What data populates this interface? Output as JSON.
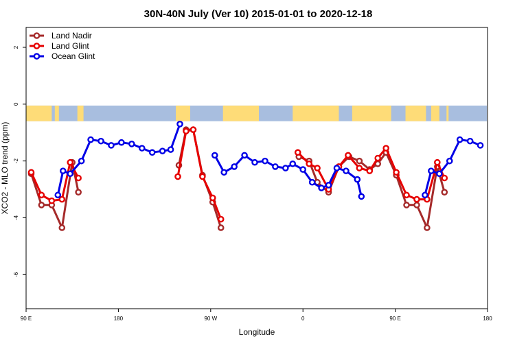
{
  "chart_data": {
    "type": "line",
    "title": "30N-40N July (Ver 10)   2015-01-01 to 2020-12-18",
    "xlabel": "Longitude",
    "ylabel": "XCO2 - MLO trend (ppm)",
    "x_axis": {
      "range_deg": [
        90,
        540
      ],
      "ticks": [
        {
          "value": 90,
          "label": "90 E"
        },
        {
          "value": 180,
          "label": "180"
        },
        {
          "value": 270,
          "label": "90 W"
        },
        {
          "value": 360,
          "label": "0"
        },
        {
          "value": 450,
          "label": "90 E"
        },
        {
          "value": 540,
          "label": "180"
        }
      ]
    },
    "y_axis": {
      "range": [
        -7.2,
        2.7
      ],
      "ticks": [
        -6,
        -4,
        -2,
        0,
        2
      ]
    },
    "grid": false,
    "legend_placement": "top-left",
    "land_mask": {
      "y_top": -0.05,
      "y_bottom": -0.6,
      "ocean_color": "#a8bedf",
      "land_color": "#fedc78",
      "land_ranges_deg": [
        [
          90,
          115
        ],
        [
          118,
          122
        ],
        [
          140,
          146
        ],
        [
          236,
          250
        ],
        [
          282,
          317
        ],
        [
          350,
          395
        ],
        [
          408,
          446
        ],
        [
          460,
          480
        ],
        [
          485,
          493
        ],
        [
          500,
          502
        ]
      ]
    },
    "series": [
      {
        "name": "Land Nadir",
        "color": "#a52a2a",
        "segments": [
          [
            [
              95,
              -2.45
            ],
            [
              105,
              -3.55
            ],
            [
              115,
              -3.55
            ],
            [
              125,
              -4.35
            ],
            [
              135,
              -2.05
            ],
            [
              141,
              -3.1
            ]
          ],
          [
            [
              239,
              -2.15
            ],
            [
              246,
              -0.9
            ],
            [
              253,
              -0.9
            ],
            [
              262,
              -2.5
            ],
            [
              272,
              -3.45
            ],
            [
              280,
              -4.35
            ]
          ],
          [
            [
              356,
              -1.85
            ],
            [
              366,
              -2.0
            ],
            [
              374,
              -2.75
            ],
            [
              385,
              -3.1
            ],
            [
              395,
              -2.2
            ],
            [
              405,
              -1.85
            ],
            [
              415,
              -2.0
            ],
            [
              425,
              -2.3
            ],
            [
              433,
              -2.1
            ],
            [
              441,
              -1.7
            ],
            [
              451,
              -2.5
            ],
            [
              461,
              -3.55
            ],
            [
              471,
              -3.55
            ],
            [
              481,
              -4.35
            ],
            [
              491,
              -2.2
            ],
            [
              498,
              -3.1
            ]
          ]
        ]
      },
      {
        "name": "Land Glint",
        "color": "#e60000",
        "segments": [
          [
            [
              95,
              -2.4
            ],
            [
              105,
              -3.2
            ],
            [
              115,
              -3.4
            ],
            [
              125,
              -3.35
            ],
            [
              133,
              -2.05
            ],
            [
              141,
              -2.6
            ]
          ],
          [
            [
              238,
              -2.55
            ],
            [
              246,
              -0.95
            ],
            [
              253,
              -0.9
            ],
            [
              262,
              -2.55
            ],
            [
              272,
              -3.3
            ],
            [
              280,
              -4.05
            ]
          ],
          [
            [
              355,
              -1.7
            ],
            [
              366,
              -2.1
            ],
            [
              374,
              -2.25
            ],
            [
              385,
              -3.0
            ],
            [
              395,
              -2.2
            ],
            [
              404,
              -1.8
            ],
            [
              415,
              -2.25
            ],
            [
              425,
              -2.35
            ],
            [
              433,
              -1.9
            ],
            [
              441,
              -1.55
            ],
            [
              451,
              -2.4
            ],
            [
              461,
              -3.2
            ],
            [
              471,
              -3.35
            ],
            [
              481,
              -3.35
            ],
            [
              491,
              -2.05
            ],
            [
              498,
              -2.6
            ]
          ]
        ]
      },
      {
        "name": "Ocean Glint",
        "color": "#0000e6",
        "segments": [
          [
            [
              121,
              -3.2
            ],
            [
              126,
              -2.35
            ],
            [
              133,
              -2.45
            ],
            [
              144,
              -2.0
            ],
            [
              153,
              -1.25
            ],
            [
              163,
              -1.3
            ],
            [
              173,
              -1.45
            ],
            [
              183,
              -1.35
            ],
            [
              193,
              -1.4
            ],
            [
              203,
              -1.55
            ],
            [
              213,
              -1.7
            ],
            [
              223,
              -1.65
            ],
            [
              231,
              -1.6
            ],
            [
              240,
              -0.7
            ]
          ],
          [
            [
              274,
              -1.8
            ],
            [
              283,
              -2.4
            ],
            [
              293,
              -2.2
            ],
            [
              303,
              -1.8
            ],
            [
              313,
              -2.05
            ],
            [
              323,
              -2.0
            ],
            [
              333,
              -2.2
            ],
            [
              343,
              -2.25
            ],
            [
              350,
              -2.1
            ],
            [
              360,
              -2.3
            ],
            [
              369,
              -2.75
            ],
            [
              378,
              -2.95
            ],
            [
              385,
              -2.85
            ],
            [
              393,
              -2.25
            ],
            [
              402,
              -2.35
            ],
            [
              413,
              -2.65
            ],
            [
              417,
              -3.25
            ]
          ],
          [
            [
              479,
              -3.2
            ],
            [
              485,
              -2.35
            ],
            [
              493,
              -2.45
            ],
            [
              503,
              -2.0
            ],
            [
              513,
              -1.25
            ],
            [
              523,
              -1.3
            ],
            [
              533,
              -1.45
            ]
          ]
        ]
      }
    ]
  }
}
